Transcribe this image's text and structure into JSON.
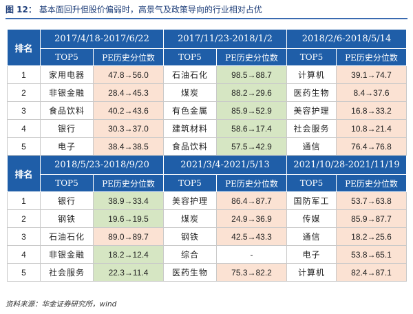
{
  "figure": {
    "label": "图 12：",
    "title": "基本面回升但股价偏弱时，高景气及政策导向的行业相对占优"
  },
  "table": {
    "rank_header": "排名",
    "sub_headers": {
      "top": "TOP5",
      "pe": "PE历史分位数"
    },
    "sections": [
      {
        "periods": [
          "2017/4/18-2017/6/22",
          "2017/11/23-2018/1/2",
          "2018/2/6-2018/5/14"
        ],
        "rows": [
          {
            "rank": "1",
            "cells": [
              {
                "industry": "家用电器",
                "value": "47.8→56.0",
                "trend": "up"
              },
              {
                "industry": "石油石化",
                "value": "98.5→88.7",
                "trend": "down"
              },
              {
                "industry": "计算机",
                "value": "39.1→74.7",
                "trend": "up"
              }
            ]
          },
          {
            "rank": "2",
            "cells": [
              {
                "industry": "非银金融",
                "value": "28.4→45.3",
                "trend": "up"
              },
              {
                "industry": "煤炭",
                "value": "88.2→29.6",
                "trend": "down"
              },
              {
                "industry": "医药生物",
                "value": "8.4→37.6",
                "trend": "up"
              }
            ]
          },
          {
            "rank": "3",
            "cells": [
              {
                "industry": "食品饮料",
                "value": "40.2→43.6",
                "trend": "up"
              },
              {
                "industry": "有色金属",
                "value": "85.9→52.9",
                "trend": "down"
              },
              {
                "industry": "美容护理",
                "value": "16.8→33.2",
                "trend": "up"
              }
            ]
          },
          {
            "rank": "4",
            "cells": [
              {
                "industry": "银行",
                "value": "30.3→37.0",
                "trend": "up"
              },
              {
                "industry": "建筑材料",
                "value": "58.6→17.4",
                "trend": "down"
              },
              {
                "industry": "社会服务",
                "value": "10.8→21.4",
                "trend": "up"
              }
            ]
          },
          {
            "rank": "5",
            "cells": [
              {
                "industry": "电子",
                "value": "38.4→38.5",
                "trend": "up"
              },
              {
                "industry": "食品饮料",
                "value": "57.5→42.9",
                "trend": "down"
              },
              {
                "industry": "通信",
                "value": "76.4→76.8",
                "trend": "up"
              }
            ]
          }
        ]
      },
      {
        "periods": [
          "2018/5/23-2018/9/20",
          "2021/3/4-2021/5/13",
          "2021/10/28-2021/11/19"
        ],
        "rows": [
          {
            "rank": "1",
            "cells": [
              {
                "industry": "银行",
                "value": "38.9→33.4",
                "trend": "down"
              },
              {
                "industry": "美容护理",
                "value": "86.4→87.7",
                "trend": "up"
              },
              {
                "industry": "国防军工",
                "value": "53.7→63.8",
                "trend": "up"
              }
            ]
          },
          {
            "rank": "2",
            "cells": [
              {
                "industry": "钢铁",
                "value": "19.6→19.5",
                "trend": "down"
              },
              {
                "industry": "煤炭",
                "value": "24.9→36.9",
                "trend": "up"
              },
              {
                "industry": "传媒",
                "value": "85.9→87.7",
                "trend": "up"
              }
            ]
          },
          {
            "rank": "3",
            "cells": [
              {
                "industry": "石油石化",
                "value": "89.0→89.7",
                "trend": "up"
              },
              {
                "industry": "钢铁",
                "value": "42.5→43.3",
                "trend": "up"
              },
              {
                "industry": "通信",
                "value": "18.2→25.6",
                "trend": "up"
              }
            ]
          },
          {
            "rank": "4",
            "cells": [
              {
                "industry": "非银金融",
                "value": "18.2→12.4",
                "trend": "down"
              },
              {
                "industry": "综合",
                "value": "-",
                "trend": "none"
              },
              {
                "industry": "电子",
                "value": "53.8→65.1",
                "trend": "up"
              }
            ]
          },
          {
            "rank": "5",
            "cells": [
              {
                "industry": "社会服务",
                "value": "22.3→11.4",
                "trend": "down"
              },
              {
                "industry": "医药生物",
                "value": "75.3→82.2",
                "trend": "up"
              },
              {
                "industry": "计算机",
                "value": "82.4→87.1",
                "trend": "up"
              }
            ]
          }
        ]
      }
    ]
  },
  "source": "资料来源：华金证券研究所，wind",
  "colors": {
    "header_bg": "#1f5ea8",
    "up_bg": "#fbe2d3",
    "down_bg": "#d6e6c3"
  }
}
